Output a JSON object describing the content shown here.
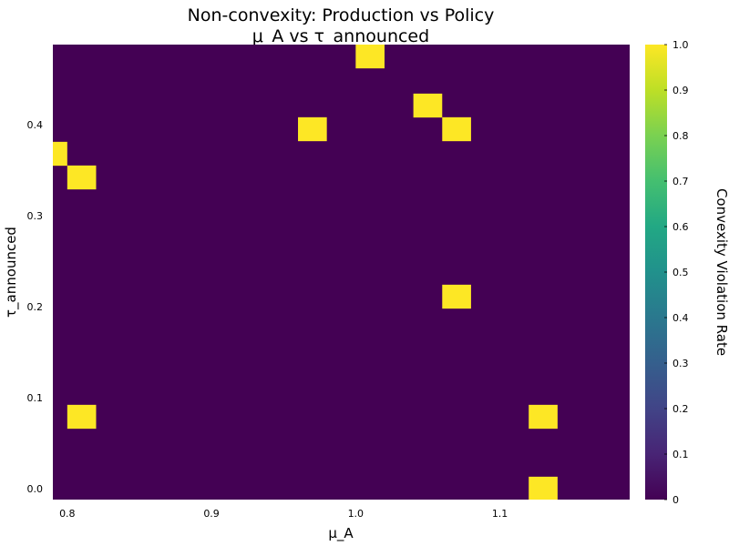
{
  "chart_data": {
    "type": "heatmap",
    "title": "Non-convexity: Production vs Policy",
    "subtitle": "μ_A vs τ_announced",
    "xlabel": "μ_A",
    "ylabel": "τ_announced",
    "colorbar_label": "Convexity Violation Rate",
    "xlim": [
      0.79,
      1.19
    ],
    "ylim": [
      -0.012,
      0.488
    ],
    "x_ticks": [
      0.8,
      0.9,
      1.0,
      1.1
    ],
    "x_tick_labels": [
      "0.8",
      "0.9",
      "1.0",
      "1.1"
    ],
    "y_ticks": [
      0.0,
      0.1,
      0.2,
      0.3,
      0.4
    ],
    "y_tick_labels": [
      "0.0",
      "0.1",
      "0.2",
      "0.3",
      "0.4"
    ],
    "colorbar_range": [
      0,
      1
    ],
    "colorbar_ticks": [
      0,
      0.1,
      0.2,
      0.3,
      0.4,
      0.5,
      0.6,
      0.7,
      0.8,
      0.9,
      1.0
    ],
    "colorbar_tick_labels": [
      "0",
      "0.1",
      "0.2",
      "0.3",
      "0.4",
      "0.5",
      "0.6",
      "0.7",
      "0.8",
      "0.9",
      "1.0"
    ],
    "background_value": 0,
    "colormap": "viridis",
    "colors": {
      "low": "#440154",
      "high": "#fde725"
    },
    "cell_size": {
      "dx": 0.02,
      "dy": 0.0263
    },
    "cells": [
      {
        "x": 1.01,
        "y": 0.475,
        "value": 1
      },
      {
        "x": 1.05,
        "y": 0.421,
        "value": 1
      },
      {
        "x": 0.97,
        "y": 0.395,
        "value": 1
      },
      {
        "x": 1.07,
        "y": 0.395,
        "value": 1
      },
      {
        "x": 0.79,
        "y": 0.368,
        "value": 1
      },
      {
        "x": 0.81,
        "y": 0.342,
        "value": 1
      },
      {
        "x": 1.07,
        "y": 0.211,
        "value": 1
      },
      {
        "x": 0.81,
        "y": 0.079,
        "value": 1
      },
      {
        "x": 1.13,
        "y": 0.079,
        "value": 1
      },
      {
        "x": 1.13,
        "y": 0.0,
        "value": 1
      }
    ]
  }
}
